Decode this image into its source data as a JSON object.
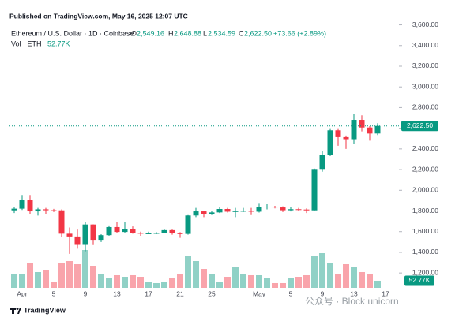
{
  "chart_data": {
    "type": "candlestick",
    "published": "Published on TradingView.com, May 16, 2025 12:07 UTC",
    "title": "Ethereum / U.S. Dollar · 1D · Coinbase",
    "legend": {
      "open_label": "O",
      "open": "2,549.16",
      "high_label": "H",
      "high": "2,648.88",
      "low_label": "L",
      "low": "2,534.59",
      "close_label": "C",
      "close": "2,622.50",
      "change": "+73.66 (+2.89%)"
    },
    "categories": [
      null,
      "Apr",
      null,
      null,
      null,
      "5",
      null,
      null,
      null,
      "9",
      null,
      null,
      null,
      "13",
      null,
      null,
      null,
      "17",
      null,
      null,
      null,
      "21",
      null,
      null,
      null,
      "25",
      null,
      null,
      null,
      null,
      null,
      "May",
      null,
      null,
      null,
      "5",
      null,
      null,
      null,
      "9",
      null,
      null,
      null,
      "13",
      null,
      null,
      null,
      "17"
    ],
    "open": [
      1806,
      1822,
      1905,
      1796,
      1816,
      1807,
      1806,
      1580,
      1553,
      1472,
      1669,
      1521,
      1566,
      1644,
      1597,
      1622,
      1588,
      1580,
      1583,
      1587,
      1614,
      1584,
      1578,
      1756,
      1796,
      1770,
      1786,
      1819,
      1793,
      1798,
      1801,
      1793,
      1838,
      1842,
      1834,
      1807,
      1817,
      1814,
      1806,
      2206,
      2342,
      2580,
      2514,
      2494,
      2681,
      2607,
      2549.16,
      null
    ],
    "high": [
      1840,
      1955,
      1955,
      1830,
      1830,
      1820,
      1815,
      1640,
      1620,
      1690,
      1670,
      1575,
      1660,
      1690,
      1690,
      1650,
      1600,
      1600,
      1595,
      1620,
      1620,
      1595,
      1760,
      1830,
      1800,
      1800,
      1835,
      1830,
      1830,
      1830,
      1830,
      1870,
      1865,
      1850,
      1845,
      1835,
      1830,
      1825,
      2210,
      2380,
      2600,
      2600,
      2530,
      2740,
      2725,
      2620,
      2648.88,
      null
    ],
    "low": [
      1780,
      1810,
      1770,
      1755,
      1770,
      1790,
      1545,
      1385,
      1435,
      1410,
      1470,
      1500,
      1560,
      1590,
      1590,
      1580,
      1560,
      1575,
      1575,
      1585,
      1570,
      1540,
      1570,
      1740,
      1740,
      1760,
      1780,
      1785,
      1740,
      1790,
      1760,
      1785,
      1815,
      1825,
      1790,
      1795,
      1800,
      1780,
      1805,
      2180,
      2330,
      2430,
      2400,
      2450,
      2570,
      2480,
      2534.59,
      null
    ],
    "close": [
      1822,
      1905,
      1796,
      1816,
      1807,
      1806,
      1580,
      1553,
      1472,
      1669,
      1521,
      1566,
      1644,
      1597,
      1622,
      1588,
      1580,
      1583,
      1587,
      1614,
      1584,
      1578,
      1756,
      1796,
      1770,
      1786,
      1819,
      1793,
      1798,
      1801,
      1793,
      1838,
      1842,
      1834,
      1807,
      1817,
      1814,
      1806,
      2206,
      2342,
      2580,
      2514,
      2494,
      2681,
      2607,
      2548.84,
      2622.5,
      null
    ],
    "volume": {
      "name": "Vol · ETH",
      "values": [
        105500,
        105500,
        187500,
        117200,
        128900,
        46900,
        187500,
        199200,
        175800,
        281300,
        164100,
        105500,
        70300,
        93800,
        82000,
        93800,
        82000,
        46900,
        35200,
        46900,
        70300,
        105500,
        234400,
        199200,
        140600,
        105500,
        46900,
        82000,
        152400,
        105500,
        93800,
        93800,
        70300,
        35200,
        35200,
        70300,
        82000,
        93800,
        234400,
        257800,
        187500,
        105500,
        175800,
        152400,
        117200,
        105500,
        52770,
        null
      ],
      "value_labels": [
        null,
        null,
        null,
        null,
        null,
        null,
        null,
        null,
        null,
        null,
        null,
        null,
        null,
        null,
        null,
        null,
        null,
        null,
        null,
        null,
        null,
        null,
        null,
        null,
        null,
        null,
        null,
        null,
        null,
        null,
        null,
        null,
        null,
        null,
        null,
        null,
        null,
        null,
        null,
        null,
        null,
        null,
        null,
        null,
        null,
        null,
        "52.77K",
        null
      ]
    },
    "up_color": "#089981",
    "down_color": "#f23645",
    "ylim": [
      980,
      3650
    ],
    "yticks": [
      {
        "value": 1200,
        "label": "1,200.00"
      },
      {
        "value": 1400,
        "label": "1,400.00"
      },
      {
        "value": 1600,
        "label": "1,600.00"
      },
      {
        "value": 1800,
        "label": "1,800.00"
      },
      {
        "value": 2000,
        "label": "2,000.00"
      },
      {
        "value": 2200,
        "label": "2,200.00"
      },
      {
        "value": 2400,
        "label": "2,400.00"
      },
      {
        "value": 2600,
        "label": "2,600.00"
      },
      {
        "value": 2800,
        "label": "2,800.00"
      },
      {
        "value": 3000,
        "label": "3,000.00"
      },
      {
        "value": 3200,
        "label": "3,200.00"
      },
      {
        "value": 3400,
        "label": "3,400.00"
      },
      {
        "value": 3600,
        "label": "3,600.00"
      }
    ],
    "footer": "TradingView",
    "watermark": "公众号 · Block unicorn"
  }
}
